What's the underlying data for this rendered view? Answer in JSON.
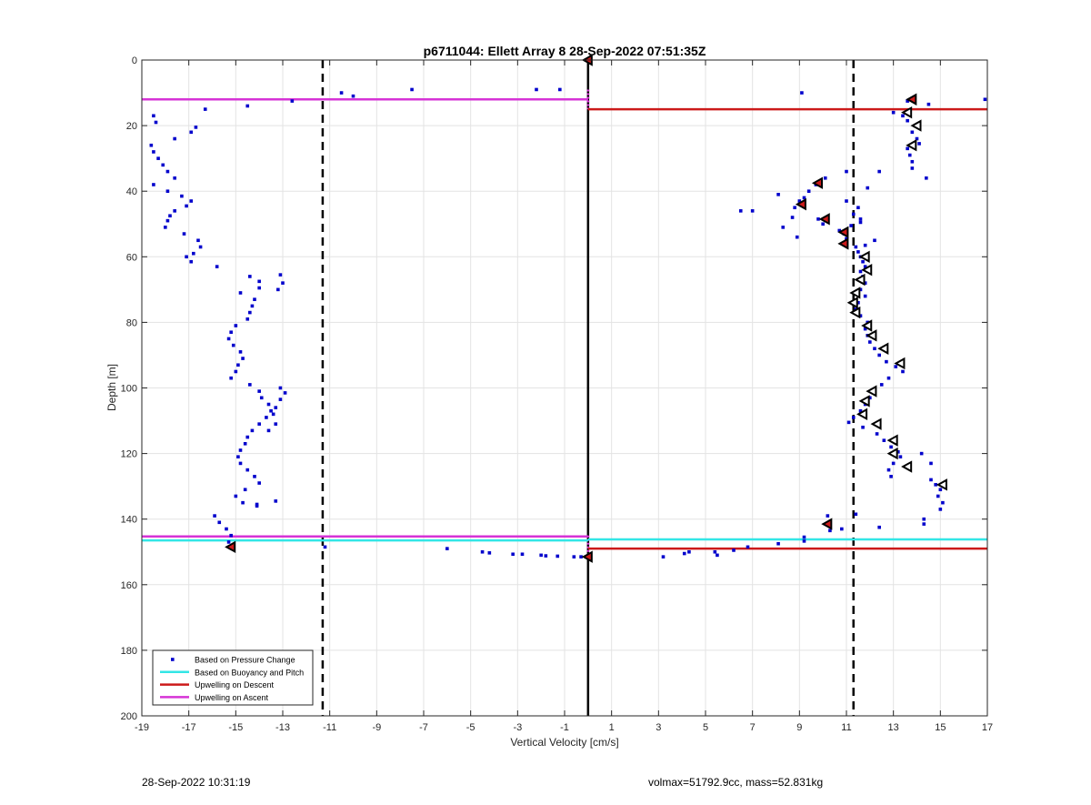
{
  "chart_data": {
    "type": "scatter",
    "title": "p6711044: Ellett Array 8 28-Sep-2022 07:51:35Z",
    "xlabel": "Vertical Velocity [cm/s]",
    "ylabel": "Depth [m]",
    "xlim": [
      -19,
      17
    ],
    "ylim": [
      0,
      200
    ],
    "y_reversed": true,
    "grid": true,
    "x_ticks": [
      -19,
      -17,
      -15,
      -13,
      -11,
      -9,
      -7,
      -5,
      -3,
      -1,
      1,
      3,
      5,
      7,
      9,
      11,
      13,
      15,
      17
    ],
    "y_ticks": [
      0,
      20,
      40,
      60,
      80,
      100,
      120,
      140,
      160,
      180,
      200
    ],
    "legend": {
      "position": "bottom-left",
      "entries": [
        {
          "label": "Based on Pressure Change",
          "color": "#0000cc",
          "style": "dot"
        },
        {
          "label": "Based on Buoyancy and Pitch",
          "color": "#33e6e6",
          "style": "line"
        },
        {
          "label": "Upwelling on Descent",
          "color": "#cc1a1a",
          "style": "line"
        },
        {
          "label": "Upwelling on Ascent",
          "color": "#d633d6",
          "style": "line"
        }
      ]
    },
    "colors": {
      "pressure": "#0000cc",
      "buoyancy": "#33e6e6",
      "descent": "#cc1a1a",
      "ascent": "#d633d6",
      "reference": "#000000",
      "marker_fill": "#cc1a1a"
    },
    "vertical_lines": [
      {
        "x": -11.3,
        "style": "dashed"
      },
      {
        "x": 11.3,
        "style": "dashed"
      },
      {
        "x": 0,
        "style": "solid"
      }
    ],
    "horizontal_segments": [
      {
        "name": "Upwelling on Ascent",
        "y": 12,
        "x0": -19,
        "x1": 0
      },
      {
        "name": "Upwelling on Ascent",
        "y": 145.3,
        "x0": -19,
        "x1": 0
      },
      {
        "name": "Based on Buoyancy and Pitch",
        "y": 146.5,
        "x0": -19,
        "x1": 0
      },
      {
        "name": "Based on Buoyancy and Pitch",
        "y": 146.2,
        "x0": 0,
        "x1": 17
      },
      {
        "name": "Upwelling on Descent",
        "y": 15,
        "x0": 0,
        "x1": 17
      },
      {
        "name": "Upwelling on Descent",
        "y": 149,
        "x0": 0,
        "x1": 17
      }
    ],
    "magenta_zero_segments": [
      [
        9,
        15
      ],
      [
        145,
        151
      ]
    ],
    "ascent_points": [
      [
        -18.5,
        17
      ],
      [
        -18.4,
        19
      ],
      [
        -18.6,
        26
      ],
      [
        -18.5,
        28
      ],
      [
        -18.3,
        30
      ],
      [
        -18.1,
        32
      ],
      [
        -17.9,
        34
      ],
      [
        -17.6,
        36
      ],
      [
        -18.5,
        38
      ],
      [
        -17.9,
        40
      ],
      [
        -17.3,
        41.5
      ],
      [
        -16.9,
        43
      ],
      [
        -17.1,
        44.5
      ],
      [
        -17.6,
        46
      ],
      [
        -17.8,
        47.5
      ],
      [
        -17.9,
        49
      ],
      [
        -18.0,
        51
      ],
      [
        -17.2,
        53
      ],
      [
        -16.6,
        55
      ],
      [
        -16.5,
        57
      ],
      [
        -16.8,
        59
      ],
      [
        -17.1,
        60
      ],
      [
        -16.9,
        61.5
      ],
      [
        -16.9,
        22
      ],
      [
        -16.7,
        20.5
      ],
      [
        -16.3,
        15
      ],
      [
        -17.6,
        24
      ],
      [
        -15.8,
        63
      ],
      [
        -14.4,
        66
      ],
      [
        -14.0,
        67.5
      ],
      [
        -14.0,
        69.5
      ],
      [
        -14.8,
        71
      ],
      [
        -14.2,
        73
      ],
      [
        -14.3,
        75
      ],
      [
        -14.4,
        77
      ],
      [
        -14.5,
        79
      ],
      [
        -15.0,
        81
      ],
      [
        -15.2,
        83
      ],
      [
        -15.3,
        85
      ],
      [
        -15.1,
        87
      ],
      [
        -14.8,
        89
      ],
      [
        -14.7,
        91
      ],
      [
        -14.9,
        93
      ],
      [
        -15.0,
        95
      ],
      [
        -15.2,
        97
      ],
      [
        -14.4,
        99
      ],
      [
        -14.0,
        101
      ],
      [
        -13.9,
        103
      ],
      [
        -13.6,
        105
      ],
      [
        -13.5,
        107
      ],
      [
        -13.7,
        109
      ],
      [
        -14.0,
        111
      ],
      [
        -14.3,
        113
      ],
      [
        -14.5,
        115
      ],
      [
        -14.6,
        117
      ],
      [
        -14.8,
        119
      ],
      [
        -14.9,
        121
      ],
      [
        -14.8,
        123
      ],
      [
        -14.5,
        125
      ],
      [
        -14.2,
        127
      ],
      [
        -14.0,
        129
      ],
      [
        -14.6,
        131
      ],
      [
        -15.0,
        133
      ],
      [
        -14.7,
        135
      ],
      [
        -14.1,
        136
      ],
      [
        -15.9,
        139
      ],
      [
        -15.7,
        141
      ],
      [
        -15.4,
        143
      ],
      [
        -15.2,
        145
      ],
      [
        -15.3,
        147
      ],
      [
        -13.1,
        65.5
      ],
      [
        -13.0,
        68
      ],
      [
        -13.2,
        70
      ],
      [
        -13.1,
        100
      ],
      [
        -12.9,
        101.5
      ],
      [
        -13.1,
        103.5
      ],
      [
        -13.3,
        106
      ],
      [
        -13.4,
        108
      ],
      [
        -13.3,
        111
      ],
      [
        -13.6,
        113
      ],
      [
        -13.3,
        134.5
      ],
      [
        -14.1,
        135.5
      ],
      [
        -14.5,
        14
      ],
      [
        -12.6,
        12.5
      ],
      [
        -10.5,
        10
      ],
      [
        -10.0,
        11
      ],
      [
        -7.5,
        9
      ],
      [
        -2.2,
        9
      ],
      [
        -1.2,
        9
      ]
    ],
    "descent_points": [
      [
        16.9,
        12
      ],
      [
        14.5,
        13.5
      ],
      [
        13.0,
        16
      ],
      [
        13.4,
        17
      ],
      [
        13.6,
        18.5
      ],
      [
        14.1,
        20
      ],
      [
        13.8,
        22
      ],
      [
        14.0,
        24
      ],
      [
        14.1,
        25.5
      ],
      [
        13.6,
        27
      ],
      [
        13.7,
        29
      ],
      [
        13.8,
        31
      ],
      [
        13.8,
        33
      ],
      [
        14.4,
        36
      ],
      [
        12.4,
        34
      ],
      [
        11.0,
        34
      ],
      [
        10.1,
        36
      ],
      [
        9.7,
        38
      ],
      [
        9.4,
        40
      ],
      [
        8.1,
        41
      ],
      [
        9.2,
        42
      ],
      [
        9.0,
        43
      ],
      [
        8.8,
        45
      ],
      [
        6.5,
        46
      ],
      [
        7.0,
        46
      ],
      [
        8.7,
        48
      ],
      [
        9.8,
        48.5
      ],
      [
        10.0,
        50
      ],
      [
        8.3,
        51
      ],
      [
        11.0,
        43
      ],
      [
        11.9,
        39
      ],
      [
        11.5,
        45
      ],
      [
        11.3,
        47
      ],
      [
        11.6,
        48.5
      ],
      [
        11.6,
        49.5
      ],
      [
        11.2,
        50.5
      ],
      [
        10.7,
        52
      ],
      [
        10.9,
        53
      ],
      [
        11.0,
        54.5
      ],
      [
        8.9,
        54
      ],
      [
        12.2,
        55
      ],
      [
        11.4,
        57
      ],
      [
        11.5,
        58.5
      ],
      [
        11.6,
        60
      ],
      [
        11.7,
        61.5
      ],
      [
        11.8,
        63
      ],
      [
        11.6,
        64.5
      ],
      [
        11.7,
        66
      ],
      [
        11.8,
        68
      ],
      [
        11.6,
        70
      ],
      [
        11.8,
        72
      ],
      [
        11.5,
        74
      ],
      [
        11.4,
        76
      ],
      [
        11.6,
        78
      ],
      [
        11.9,
        80
      ],
      [
        11.8,
        82
      ],
      [
        11.9,
        84
      ],
      [
        12.0,
        86
      ],
      [
        12.2,
        88
      ],
      [
        12.4,
        90
      ],
      [
        12.7,
        92
      ],
      [
        13.1,
        93.5
      ],
      [
        13.4,
        95
      ],
      [
        12.8,
        97
      ],
      [
        12.5,
        99
      ],
      [
        12.2,
        101
      ],
      [
        12.0,
        103
      ],
      [
        11.8,
        105
      ],
      [
        11.6,
        107
      ],
      [
        11.3,
        109
      ],
      [
        11.1,
        110.5
      ],
      [
        11.7,
        112
      ],
      [
        12.3,
        114
      ],
      [
        12.6,
        116
      ],
      [
        12.9,
        118
      ],
      [
        13.2,
        119.5
      ],
      [
        13.3,
        121
      ],
      [
        13.0,
        123
      ],
      [
        12.8,
        125
      ],
      [
        12.9,
        127
      ],
      [
        14.2,
        120
      ],
      [
        14.6,
        123
      ],
      [
        14.8,
        129.5
      ],
      [
        15.0,
        131
      ],
      [
        14.9,
        133
      ],
      [
        15.1,
        135
      ],
      [
        15.0,
        137
      ],
      [
        14.6,
        128
      ],
      [
        14.3,
        140
      ],
      [
        14.3,
        141.5
      ],
      [
        12.4,
        142.5
      ],
      [
        11.4,
        138.5
      ],
      [
        10.2,
        139
      ],
      [
        10.3,
        143.5
      ],
      [
        9.2,
        145.5
      ],
      [
        9.2,
        146.7
      ],
      [
        8.1,
        147.5
      ],
      [
        11.8,
        56.5
      ],
      [
        10.8,
        143
      ],
      [
        9.1,
        10
      ],
      [
        13.6,
        12.5
      ],
      [
        6.8,
        148.5
      ],
      [
        6.2,
        149.5
      ],
      [
        5.4,
        150
      ],
      [
        5.5,
        151
      ],
      [
        4.3,
        150
      ],
      [
        4.1,
        150.5
      ],
      [
        3.2,
        151.5
      ],
      [
        -11.2,
        148.5
      ],
      [
        -6.0,
        149
      ],
      [
        -4.5,
        150
      ],
      [
        -4.2,
        150.3
      ],
      [
        -3.2,
        150.7
      ],
      [
        -2.8,
        150.7
      ],
      [
        -2.0,
        151
      ],
      [
        -1.8,
        151.2
      ],
      [
        -1.3,
        151.3
      ],
      [
        -0.6,
        151.5
      ],
      [
        -0.3,
        151.5
      ]
    ],
    "marker_triangles_left": [
      [
        13.6,
        16
      ],
      [
        14.0,
        20
      ],
      [
        13.8,
        26
      ],
      [
        11.8,
        60
      ],
      [
        11.9,
        64
      ],
      [
        11.6,
        67
      ],
      [
        11.4,
        71
      ],
      [
        11.3,
        74
      ],
      [
        11.4,
        77
      ],
      [
        11.9,
        81
      ],
      [
        12.1,
        84
      ],
      [
        12.6,
        88
      ],
      [
        13.3,
        92.5
      ],
      [
        12.1,
        101
      ],
      [
        11.8,
        104
      ],
      [
        11.7,
        108
      ],
      [
        12.3,
        111
      ],
      [
        13.0,
        116
      ],
      [
        13.0,
        120
      ],
      [
        13.6,
        124
      ],
      [
        15.1,
        129.5
      ]
    ],
    "marker_red_filled": [
      [
        13.8,
        12
      ],
      [
        9.8,
        37.5
      ],
      [
        9.1,
        44
      ],
      [
        10.1,
        48.5
      ],
      [
        10.9,
        52.5
      ],
      [
        10.9,
        56
      ],
      [
        10.2,
        141.5
      ],
      [
        -15.2,
        148.5
      ],
      [
        0,
        151.5
      ],
      [
        0,
        0
      ]
    ]
  },
  "footer": {
    "left_timestamp": "28-Sep-2022 10:31:19",
    "right_info": "volmax=51792.9cc, mass=52.831kg"
  }
}
